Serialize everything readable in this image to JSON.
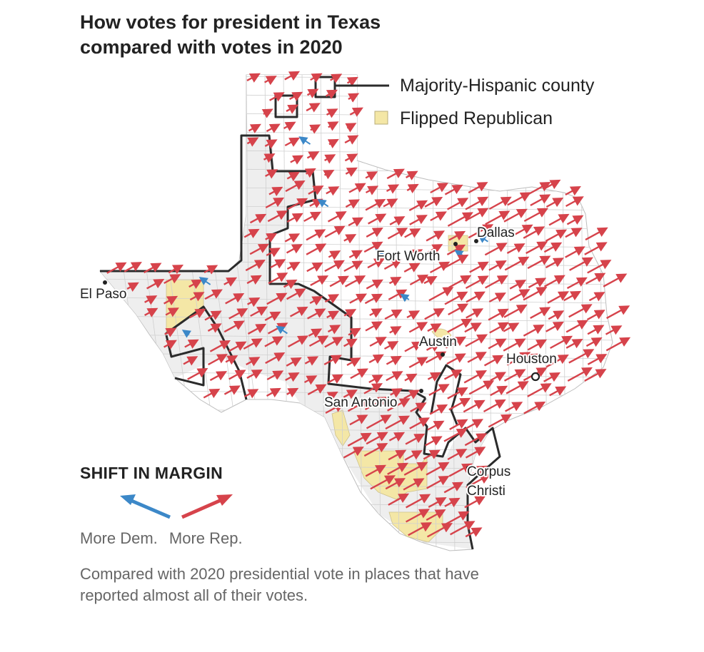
{
  "title": {
    "line1": "How votes for president in Texas",
    "line2": "compared with votes in 2020"
  },
  "legend": {
    "majority_hispanic": "Majority-Hispanic county",
    "flipped_republican": "Flipped Republican"
  },
  "cities": {
    "el_paso": "El Paso",
    "dallas": "Dallas",
    "fort_worth": "Fort Worth",
    "austin": "Austin",
    "houston": "Houston",
    "san_antonio": "San Antonio",
    "corpus_line1": "Corpus",
    "corpus_line2": "Christi"
  },
  "shift_key": {
    "title": "SHIFT IN MARGIN",
    "more_dem": "More Dem.",
    "more_rep": "More Rep."
  },
  "note": "Compared with 2020 presidential vote in places that have reported almost all of their votes.",
  "colors": {
    "rep": "#d6434b",
    "dem": "#3c88c8",
    "flipped": "#f4e7a6",
    "hispanic_fill": "#eeeeee",
    "outline": "#2b2b2b"
  }
}
